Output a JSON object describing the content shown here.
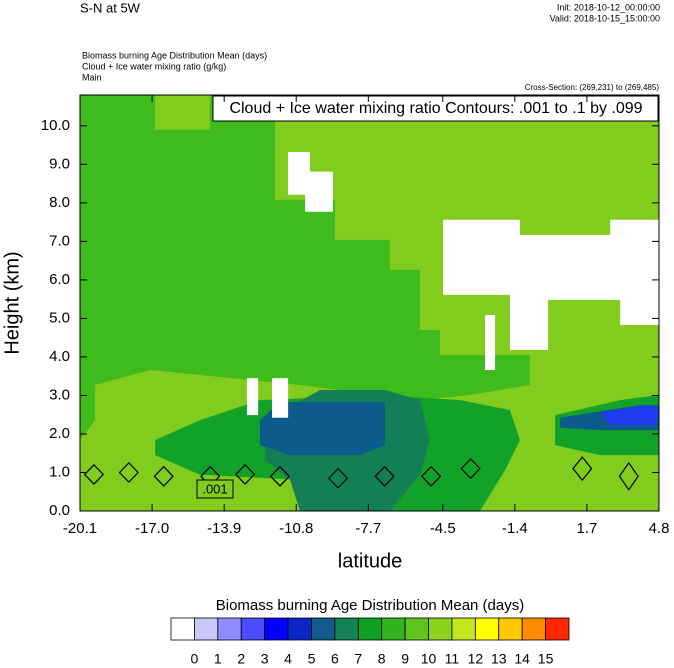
{
  "chart_data": {
    "type": "filled-contour",
    "title": "S-N at 5W",
    "init": "Init: 2018-10-12_00:00:00",
    "valid": "Valid: 2018-10-15_15:00:00",
    "field_lines": [
      "Biomass burning Age Distribution Mean   (days)",
      "Cloud + Ice water mixing ratio   (g/kg)",
      "Main"
    ],
    "cross_section": "Cross-Section: (269,231) to (269,485)",
    "contour_title": "Cloud + Ice water mixing ratio Contours: .001 to .1 by .099",
    "contour_label": ".001",
    "x_label": "latitude",
    "y_label": "Height (km)",
    "xlim": [
      -20.1,
      4.8
    ],
    "ylim": [
      0,
      10.8
    ],
    "xticks": [
      -20.1,
      {
        "value": -17,
        "label": "-17.0"
      },
      -13.9,
      -10.8,
      -7.7,
      -4.5,
      -1.4,
      1.7,
      4.8
    ],
    "yticks": [
      {
        "value": 0,
        "label": "0.0"
      },
      {
        "value": 1,
        "label": "1.0"
      },
      {
        "value": 2,
        "label": "2.0"
      },
      {
        "value": 3,
        "label": "3.0"
      },
      {
        "value": 4,
        "label": "4.0"
      },
      {
        "value": 5,
        "label": "5.0"
      },
      {
        "value": 6,
        "label": "6.0"
      },
      {
        "value": 7,
        "label": "7.0"
      },
      {
        "value": 8,
        "label": "8.0"
      },
      {
        "value": 9,
        "label": "9.0"
      },
      {
        "value": 10,
        "label": "10.0"
      }
    ],
    "regions": [
      {
        "color": "#82cc1e",
        "points": [
          [
            -20.1,
            0
          ],
          [
            4.8,
            0
          ],
          [
            4.8,
            10.8
          ],
          [
            -20.1,
            10.8
          ]
        ]
      },
      {
        "color": "#40bb1e",
        "points": [
          [
            -20.1,
            10.8
          ],
          [
            -16.87,
            10.8
          ],
          [
            -16.87,
            9.9
          ],
          [
            -14.51,
            9.9
          ],
          [
            -14.51,
            10.8
          ],
          [
            -11.71,
            10.8
          ],
          [
            -11.71,
            8.08
          ],
          [
            -9.13,
            8.08
          ],
          [
            -9.13,
            7.04
          ],
          [
            -6.77,
            7.04
          ],
          [
            -6.77,
            6.26
          ],
          [
            -5.48,
            6.26
          ],
          [
            -5.48,
            4.7
          ],
          [
            -4.62,
            4.7
          ],
          [
            -4.62,
            4.05
          ],
          [
            -0.75,
            4.05
          ],
          [
            -0.75,
            3.27
          ],
          [
            -3.33,
            3.01
          ],
          [
            -5.48,
            2.88
          ],
          [
            -10.64,
            3.27
          ],
          [
            -17.09,
            3.66
          ],
          [
            -19.45,
            3.27
          ],
          [
            -19.45,
            2.36
          ],
          [
            -20.1,
            1.84
          ]
        ]
      },
      {
        "color": "#12a22a",
        "points": [
          [
            -16.87,
            1.84
          ],
          [
            -14.94,
            2.36
          ],
          [
            -12.36,
            2.88
          ],
          [
            -7.2,
            3.01
          ],
          [
            -3.76,
            2.88
          ],
          [
            -1.61,
            2.62
          ],
          [
            -1.18,
            1.84
          ],
          [
            -1.82,
            1.06
          ],
          [
            -2.9,
            0
          ],
          [
            -10.64,
            0
          ],
          [
            -10.64,
            0.81
          ],
          [
            -14.94,
            0.94
          ],
          [
            -16.87,
            1.45
          ]
        ]
      },
      {
        "color": "#12a22a",
        "points": [
          [
            0.33,
            2.49
          ],
          [
            3.13,
            2.88
          ],
          [
            4.8,
            3.01
          ],
          [
            4.8,
            1.45
          ],
          [
            2.27,
            1.45
          ],
          [
            0.33,
            1.71
          ]
        ]
      },
      {
        "color": "#147e55",
        "points": [
          [
            -12.14,
            2.36
          ],
          [
            -9.78,
            3.14
          ],
          [
            -6.98,
            3.14
          ],
          [
            -5.48,
            2.88
          ],
          [
            -5.05,
            1.84
          ],
          [
            -5.48,
            0.94
          ],
          [
            -6.77,
            0
          ],
          [
            -10.64,
            0
          ],
          [
            -11.07,
            0.81
          ],
          [
            -12.14,
            1.32
          ]
        ]
      },
      {
        "color": "#0d5a8c",
        "points": [
          [
            -12.36,
            2.36
          ],
          [
            -11.5,
            2.83
          ],
          [
            -6.98,
            2.83
          ],
          [
            -6.98,
            1.71
          ],
          [
            -8.06,
            1.45
          ],
          [
            -11.07,
            1.45
          ],
          [
            -12.36,
            1.71
          ]
        ]
      },
      {
        "color": "#0d5a8c",
        "points": [
          [
            0.55,
            2.42
          ],
          [
            3.99,
            2.75
          ],
          [
            4.8,
            2.75
          ],
          [
            4.8,
            2.1
          ],
          [
            2.27,
            2.1
          ],
          [
            0.55,
            2.16
          ]
        ]
      },
      {
        "color": "#1e3cf0",
        "points": [
          [
            2.27,
            2.57
          ],
          [
            4.42,
            2.75
          ],
          [
            4.8,
            2.62
          ],
          [
            4.63,
            2.23
          ],
          [
            2.7,
            2.23
          ]
        ]
      },
      {
        "color": "#ffffff",
        "points": [
          [
            -11.15,
            9.32
          ],
          [
            -10.21,
            9.32
          ],
          [
            -10.21,
            8.81
          ],
          [
            -9.22,
            8.81
          ],
          [
            -9.22,
            7.77
          ],
          [
            -10.42,
            7.77
          ],
          [
            -10.42,
            8.21
          ],
          [
            -11.15,
            8.21
          ]
        ]
      },
      {
        "color": "#ffffff",
        "points": [
          [
            -4.49,
            7.56
          ],
          [
            -1.18,
            7.56
          ],
          [
            -1.18,
            7.17
          ],
          [
            2.7,
            7.17
          ],
          [
            2.7,
            7.56
          ],
          [
            4.8,
            7.56
          ],
          [
            4.8,
            4.83
          ],
          [
            3.13,
            4.83
          ],
          [
            3.13,
            5.48
          ],
          [
            0.03,
            5.48
          ],
          [
            0.03,
            4.18
          ],
          [
            -1.61,
            4.18
          ],
          [
            -1.61,
            5.61
          ],
          [
            -4.49,
            5.61
          ]
        ]
      },
      {
        "color": "#ffffff",
        "points": [
          [
            -2.68,
            5.09
          ],
          [
            -2.25,
            5.09
          ],
          [
            -2.25,
            3.66
          ],
          [
            -2.68,
            3.66
          ]
        ]
      },
      {
        "color": "#ffffff",
        "points": [
          [
            -12.92,
            3.45
          ],
          [
            -12.44,
            3.45
          ],
          [
            -12.44,
            2.49
          ],
          [
            -12.92,
            2.49
          ]
        ]
      },
      {
        "color": "#ffffff",
        "points": [
          [
            -11.84,
            3.45
          ],
          [
            -11.15,
            3.45
          ],
          [
            -11.15,
            2.42
          ],
          [
            -11.84,
            2.42
          ]
        ]
      }
    ],
    "contours": [
      {
        "points": [
          [
            -19.9,
            0.95
          ],
          [
            -19.5,
            1.2
          ],
          [
            -19.1,
            0.95
          ],
          [
            -19.5,
            0.7
          ]
        ]
      },
      {
        "points": [
          [
            -18.4,
            1.0
          ],
          [
            -18.0,
            1.25
          ],
          [
            -17.6,
            1.0
          ],
          [
            -18.0,
            0.75
          ]
        ]
      },
      {
        "points": [
          [
            -16.9,
            0.9
          ],
          [
            -16.5,
            1.15
          ],
          [
            -16.1,
            0.9
          ],
          [
            -16.5,
            0.65
          ]
        ]
      },
      {
        "points": [
          [
            -14.9,
            0.9
          ],
          [
            -14.5,
            1.15
          ],
          [
            -14.1,
            0.9
          ],
          [
            -14.5,
            0.65
          ]
        ]
      },
      {
        "points": [
          [
            -13.4,
            0.95
          ],
          [
            -13.0,
            1.2
          ],
          [
            -12.6,
            0.95
          ],
          [
            -13.0,
            0.7
          ]
        ]
      },
      {
        "points": [
          [
            -11.9,
            0.9
          ],
          [
            -11.5,
            1.15
          ],
          [
            -11.1,
            0.9
          ],
          [
            -11.5,
            0.65
          ]
        ]
      },
      {
        "points": [
          [
            -9.4,
            0.85
          ],
          [
            -9.0,
            1.1
          ],
          [
            -8.6,
            0.85
          ],
          [
            -9.0,
            0.6
          ]
        ]
      },
      {
        "points": [
          [
            -7.4,
            0.9
          ],
          [
            -7.0,
            1.15
          ],
          [
            -6.6,
            0.9
          ],
          [
            -7.0,
            0.65
          ]
        ]
      },
      {
        "points": [
          [
            -5.4,
            0.9
          ],
          [
            -5.0,
            1.15
          ],
          [
            -4.6,
            0.9
          ],
          [
            -5.0,
            0.65
          ]
        ]
      },
      {
        "points": [
          [
            -3.7,
            1.1
          ],
          [
            -3.3,
            1.35
          ],
          [
            -2.9,
            1.1
          ],
          [
            -3.3,
            0.85
          ]
        ]
      },
      {
        "points": [
          [
            1.1,
            1.1
          ],
          [
            1.5,
            1.4
          ],
          [
            1.9,
            1.1
          ],
          [
            1.5,
            0.8
          ]
        ]
      },
      {
        "points": [
          [
            3.1,
            0.9
          ],
          [
            3.5,
            1.25
          ],
          [
            3.9,
            0.9
          ],
          [
            3.5,
            0.55
          ]
        ]
      }
    ],
    "colorbar": {
      "title": "Biomass burning Age Distribution Mean  (days)",
      "colors": [
        "#ffffff",
        "#c8c8ff",
        "#8c8cff",
        "#4b4bff",
        "#0000ff",
        "#0a28c8",
        "#145a8c",
        "#148254",
        "#0fa028",
        "#32b41e",
        "#60c41e",
        "#8cd21e",
        "#c3e61e",
        "#ffff00",
        "#ffc800",
        "#ff8c00",
        "#ff2800"
      ],
      "labels": [
        0,
        1,
        2,
        3,
        4,
        5,
        6,
        7,
        8,
        9,
        10,
        11,
        12,
        13,
        14,
        15
      ]
    }
  }
}
